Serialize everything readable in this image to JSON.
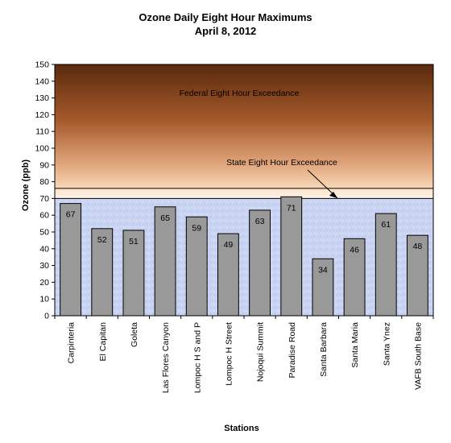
{
  "chart_data": {
    "type": "bar",
    "title": "Ozone Daily Eight Hour Maximums",
    "subtitle": "April 8, 2012",
    "xlabel": "Stations",
    "ylabel": "Ozone (ppb)",
    "ylim": [
      0,
      150
    ],
    "yticks": [
      0,
      10,
      20,
      30,
      40,
      50,
      60,
      70,
      80,
      90,
      100,
      110,
      120,
      130,
      140,
      150
    ],
    "categories": [
      "Carpinteria",
      "El Capitan",
      "Goleta",
      "Las Flores Canyon",
      "Lompoc H S and P",
      "Lompoc H Street",
      "Nojoqui Summit",
      "Paradise Road",
      "Santa Barbara",
      "Santa Maria",
      "Santa Ynez",
      "VAFB South Base"
    ],
    "values": [
      67,
      52,
      51,
      65,
      59,
      49,
      63,
      71,
      34,
      46,
      61,
      48
    ],
    "thresholds": {
      "state": {
        "label": "State Eight Hour Exceedance",
        "value": 70
      },
      "federal": {
        "label": "Federal Eight Hour Exceedance",
        "value": 76
      }
    },
    "colors": {
      "bar": "#999999",
      "bar_edge": "#000000",
      "federal_top": "#5a2a0e",
      "federal_bottom": "#f8d8b8",
      "below": "#c8d4f0"
    },
    "grid": false,
    "legend": "none"
  }
}
